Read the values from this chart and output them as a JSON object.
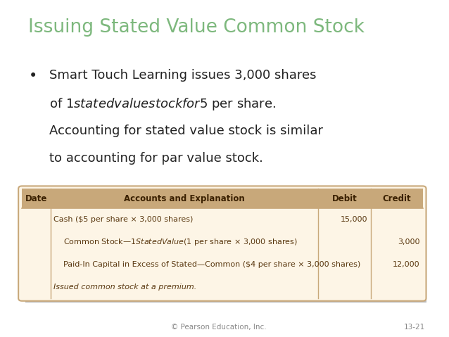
{
  "title": "Issuing Stated Value Common Stock",
  "title_color": "#7db87d",
  "bullet_lines": [
    "Smart Touch Learning issues 3,000 shares",
    "of $1 stated value stock for $5 per share.",
    "Accounting for stated value stock is similar",
    "to accounting for par value stock."
  ],
  "bg_color": "#ffffff",
  "text_color": "#222222",
  "footer_left": "© Pearson Education, Inc.",
  "footer_right": "13-21",
  "footer_color": "#888888",
  "table": {
    "header": [
      "Date",
      "Accounts and Explanation",
      "Debit",
      "Credit"
    ],
    "header_bg": "#c8a87a",
    "header_text_color": "#3a2000",
    "body_bg": "#fdf5e6",
    "border_color": "#c8a87a",
    "shadow_color": "#bbbbbb",
    "rows": [
      {
        "account": "Cash ($5 per share × 3,000 shares)",
        "debit": "15,000",
        "credit": "",
        "indent": 0,
        "italic": false
      },
      {
        "account": "Common Stock—$1 Stated Value ($1 per share × 3,000 shares)",
        "debit": "",
        "credit": "3,000",
        "indent": 1,
        "italic": false
      },
      {
        "account": "Paid-In Capital in Excess of Stated—Common ($4 per share × 3,000 shares)",
        "debit": "",
        "credit": "12,000",
        "indent": 1,
        "italic": false
      },
      {
        "account": "Issued common stock at a premium.",
        "debit": "",
        "credit": "",
        "indent": 0,
        "italic": true
      }
    ]
  }
}
